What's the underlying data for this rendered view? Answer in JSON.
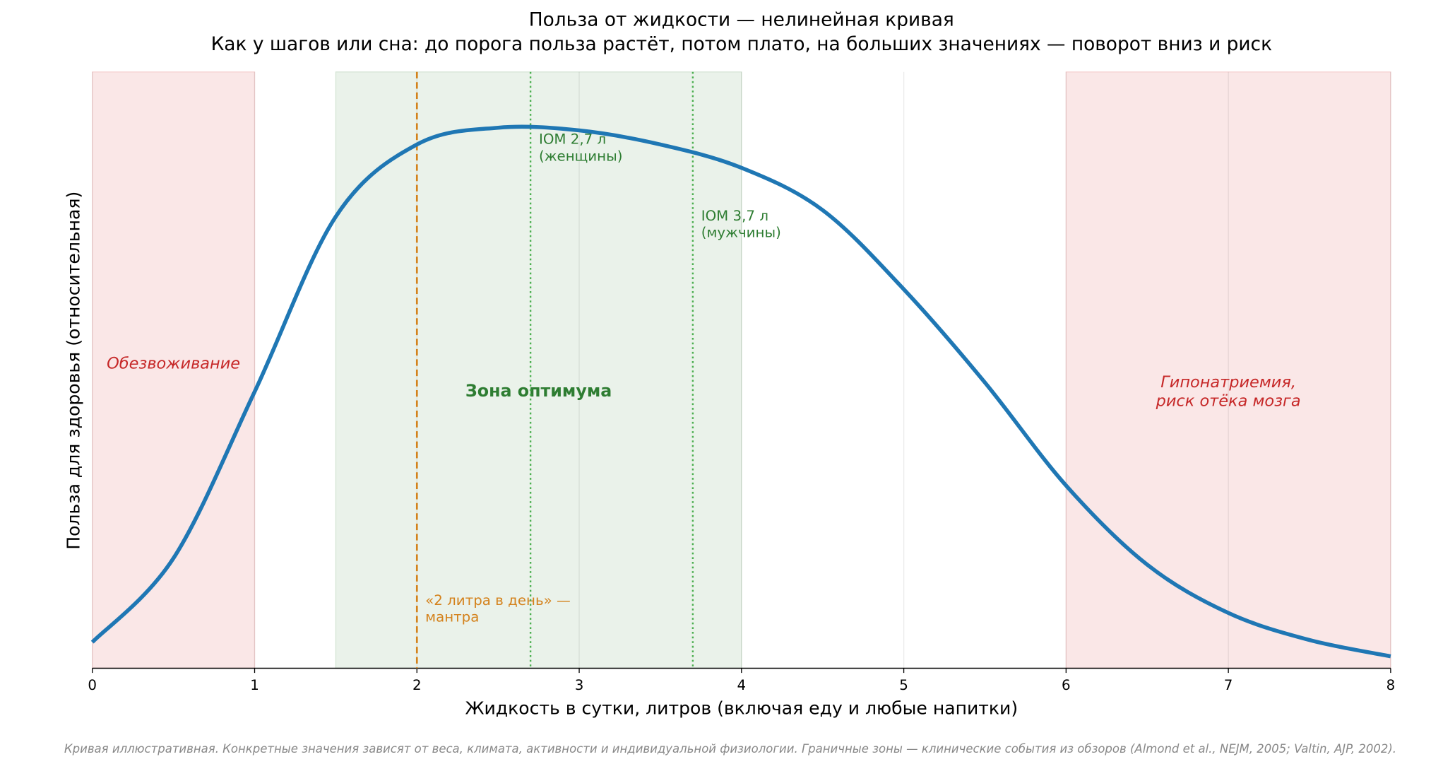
{
  "chart_data": {
    "type": "line",
    "title": "Польза от жидкости — нелинейная кривая",
    "subtitle": "Как у шагов или сна: до порога польза растёт, потом плато, на больших значениях — поворот вниз и риск",
    "x_label": "Жидкость в сутки, литров (включая еду и любые напитки)",
    "y_label": "Польза для здоровья (относительная)",
    "footnote": "Кривая иллюстративная. Конкретные значения зависят от веса, климата, активности и индивидуальной физиологии. Граничные зоны — клинические события из обзоров (Almond et al., NEJM, 2005; Valtin, AJP, 2002).",
    "x": [
      0,
      0.5,
      1,
      1.5,
      2,
      2.5,
      3,
      3.5,
      4,
      4.5,
      5,
      5.5,
      6,
      6.5,
      7,
      7.5,
      8
    ],
    "series": [
      {
        "color": "#1f77b4",
        "values": [
          0.048,
          0.203,
          0.51,
          0.833,
          0.966,
          0.997,
          0.992,
          0.966,
          0.923,
          0.845,
          0.699,
          0.527,
          0.337,
          0.191,
          0.102,
          0.052,
          0.022
        ]
      }
    ],
    "xlim": [
      0,
      8
    ],
    "ylim": [
      0,
      1.1
    ],
    "xticks": [
      0,
      1,
      2,
      3,
      4,
      5,
      6,
      7,
      8
    ],
    "grid": true,
    "zones": [
      {
        "from": 0,
        "to": 1,
        "color": "#d62728",
        "label": [
          "Обезвоживание"
        ]
      },
      {
        "from": 1.5,
        "to": 4,
        "color": "#2e7d32",
        "label": [
          "Зона оптимума"
        ]
      },
      {
        "from": 6,
        "to": 8,
        "color": "#d62728",
        "label": [
          "Гипонатриемия,",
          "риск отёка мозга"
        ]
      }
    ],
    "markers": [
      {
        "x": 2,
        "color": "#d4821c",
        "style": "dashed",
        "label": [
          "«2 литра в день» —",
          "мантра"
        ]
      },
      {
        "x": 2.7,
        "color": "#4caf50",
        "style": "dotted",
        "label": [
          "IOM 2,7 л",
          "(женщины)"
        ]
      },
      {
        "x": 3.7,
        "color": "#4caf50",
        "style": "dotted",
        "label": [
          "IOM 3,7 л",
          "(мужчины)"
        ]
      }
    ]
  }
}
